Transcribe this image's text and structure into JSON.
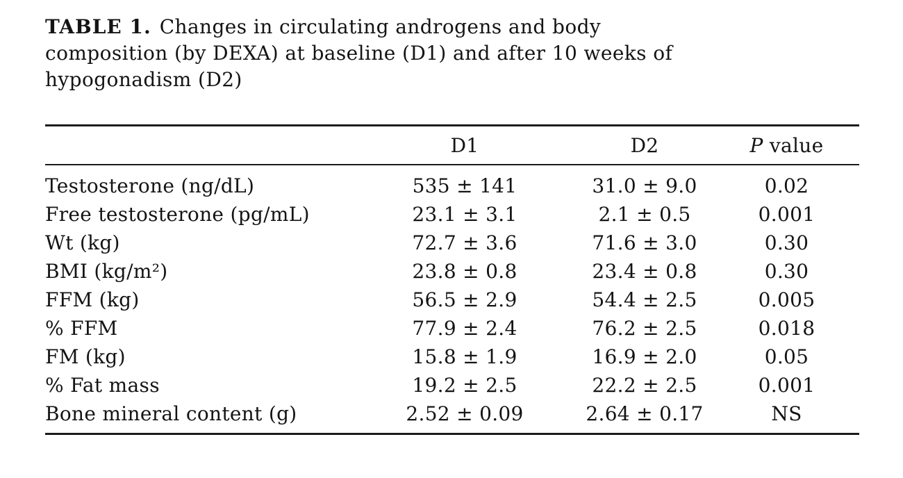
{
  "page": {
    "background": "#ffffff",
    "text_color": "#141414",
    "rule_color": "#1b1b1b"
  },
  "title": {
    "label": "TABLE 1.",
    "line1_rest": "Changes in circulating androgens and body",
    "line2": "composition (by DEXA) at baseline (D1) and after 10 weeks of",
    "line3": "hypogonadism (D2)"
  },
  "table": {
    "header": {
      "col_label": "",
      "col_d1": "D1",
      "col_d2": "D2",
      "p_italic": "P",
      "p_rest": "value"
    },
    "rows": [
      {
        "label": "Testosterone (ng/dL)",
        "d1": "535 ± 141",
        "d2": "31.0 ± 9.0",
        "p": "0.02"
      },
      {
        "label": "Free testosterone (pg/mL)",
        "d1": "23.1 ± 3.1",
        "d2": "2.1 ± 0.5",
        "p": "0.001"
      },
      {
        "label": "Wt (kg)",
        "d1": "72.7 ± 3.6",
        "d2": "71.6 ± 3.0",
        "p": "0.30"
      },
      {
        "label": "BMI (kg/m²)",
        "d1": "23.8 ± 0.8",
        "d2": "23.4 ± 0.8",
        "p": "0.30"
      },
      {
        "label": "FFM (kg)",
        "d1": "56.5 ± 2.9",
        "d2": "54.4 ± 2.5",
        "p": "0.005"
      },
      {
        "label": "% FFM",
        "d1": "77.9 ± 2.4",
        "d2": "76.2 ± 2.5",
        "p": "0.018"
      },
      {
        "label": "FM (kg)",
        "d1": "15.8 ± 1.9",
        "d2": "16.9 ± 2.0",
        "p": "0.05"
      },
      {
        "label": "% Fat mass",
        "d1": "19.2 ± 2.5",
        "d2": "22.2 ± 2.5",
        "p": "0.001"
      },
      {
        "label": "Bone mineral content (g)",
        "d1": "2.52 ± 0.09",
        "d2": "2.64 ± 0.17",
        "p": "NS"
      }
    ]
  }
}
